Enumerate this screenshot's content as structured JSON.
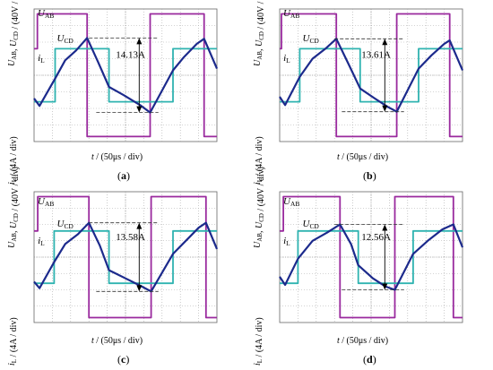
{
  "colors": {
    "u_ab": "#9a2a9e",
    "u_cd": "#2fb3b0",
    "i_l": "#1c2a8c",
    "grid": "#aaaaaa",
    "dash": "#333333"
  },
  "labels": {
    "u_ab": "U",
    "u_ab_sub": "AB",
    "u_cd": "U",
    "u_cd_sub": "CD",
    "i_l": "i",
    "i_l_sub": "L",
    "xlabel": "t / (50μs / div)",
    "ylabel_voltage": "U_AB, U_CD / (40V / div)",
    "ylabel_current": "i_L / (4A / div)"
  },
  "chart_data": [
    {
      "type": "line",
      "caption": "(a)",
      "annotation": "14.13A",
      "xlabel": "t / (50μs / div)",
      "ylabel": "U_AB, U_CD / (40V / div)   i_L / (4A / div)",
      "grid": true,
      "divisions": {
        "x": 10,
        "y": 8
      },
      "series": [
        {
          "name": "U_AB",
          "x": [
            0,
            0.18,
            0.18,
            2.9,
            2.9,
            6.35,
            6.35,
            9.3,
            9.3,
            10
          ],
          "y": [
            1.6,
            1.6,
            3.7,
            3.7,
            -3.7,
            -3.7,
            3.7,
            3.7,
            -3.7,
            -3.7
          ]
        },
        {
          "name": "U_CD",
          "x": [
            0,
            1.15,
            1.15,
            4.1,
            4.1,
            7.6,
            7.6,
            10
          ],
          "y": [
            -1.6,
            -1.6,
            1.6,
            1.6,
            -1.6,
            -1.6,
            1.6,
            1.6
          ]
        },
        {
          "name": "i_L",
          "x": [
            0,
            0.3,
            1.15,
            1.7,
            2.3,
            2.9,
            3.5,
            4.1,
            4.9,
            5.8,
            6.35,
            7.6,
            8.2,
            8.9,
            9.3,
            10
          ],
          "y": [
            -1.4,
            -1.85,
            -0.2,
            0.9,
            1.5,
            2.25,
            0.8,
            -0.7,
            -1.2,
            -1.8,
            -2.25,
            0.3,
            1.1,
            1.9,
            2.2,
            0.4
          ]
        }
      ]
    },
    {
      "type": "line",
      "caption": "(b)",
      "annotation": "13.61A",
      "xlabel": "t / (50μs / div)",
      "ylabel": "U_AB, U_CD / (40V / div)   i_L / (4A / div)",
      "grid": true,
      "divisions": {
        "x": 10,
        "y": 8
      },
      "series": [
        {
          "name": "U_AB",
          "x": [
            0,
            0.1,
            0.1,
            3.1,
            3.1,
            6.4,
            6.4,
            9.3,
            9.3,
            10
          ],
          "y": [
            1.6,
            1.6,
            3.7,
            3.7,
            -3.7,
            -3.7,
            3.7,
            3.7,
            -3.7,
            -3.7
          ]
        },
        {
          "name": "U_CD",
          "x": [
            0,
            1.1,
            1.1,
            4.4,
            4.4,
            7.6,
            7.6,
            10
          ],
          "y": [
            -1.6,
            -1.6,
            1.6,
            1.6,
            -1.6,
            -1.6,
            1.6,
            1.6
          ]
        },
        {
          "name": "i_L",
          "x": [
            0,
            0.3,
            1.1,
            1.8,
            2.5,
            3.1,
            3.8,
            4.4,
            5.2,
            5.9,
            6.4,
            7.6,
            8.3,
            9.0,
            9.3,
            10
          ],
          "y": [
            -1.3,
            -1.8,
            -0.1,
            1.0,
            1.6,
            2.2,
            0.6,
            -0.8,
            -1.4,
            -1.9,
            -2.2,
            0.4,
            1.2,
            1.9,
            2.1,
            0.3
          ]
        }
      ]
    },
    {
      "type": "line",
      "caption": "(c)",
      "annotation": "13.58A",
      "xlabel": "t / (50μs / div)",
      "ylabel": "U_AB, U_CD / (40V / div)   i_L / (4A / div)",
      "grid": true,
      "divisions": {
        "x": 10,
        "y": 8
      },
      "series": [
        {
          "name": "U_AB",
          "x": [
            0,
            0.2,
            0.2,
            3.0,
            3.0,
            6.4,
            6.4,
            9.4,
            9.4,
            10
          ],
          "y": [
            1.6,
            1.6,
            3.7,
            3.7,
            -3.7,
            -3.7,
            3.7,
            3.7,
            -3.7,
            -3.7
          ]
        },
        {
          "name": "U_CD",
          "x": [
            0,
            1.1,
            1.1,
            4.1,
            4.1,
            7.6,
            7.6,
            10
          ],
          "y": [
            -1.6,
            -1.6,
            1.6,
            1.6,
            -1.6,
            -1.6,
            1.6,
            1.6
          ]
        },
        {
          "name": "i_L",
          "x": [
            0,
            0.3,
            1.1,
            1.7,
            2.4,
            3.0,
            3.6,
            4.1,
            5.0,
            5.9,
            6.4,
            7.6,
            8.3,
            9.0,
            9.4,
            10
          ],
          "y": [
            -1.5,
            -1.9,
            -0.3,
            0.8,
            1.4,
            2.1,
            0.7,
            -0.8,
            -1.3,
            -1.8,
            -2.1,
            0.2,
            1.0,
            1.8,
            2.1,
            0.5
          ]
        }
      ]
    },
    {
      "type": "line",
      "caption": "(d)",
      "annotation": "12.56A",
      "xlabel": "t / (50μs / div)",
      "ylabel": "U_AB, U_CD / (40V / div)   i_L / (4A / div)",
      "grid": true,
      "divisions": {
        "x": 10,
        "y": 8
      },
      "series": [
        {
          "name": "U_AB",
          "x": [
            0,
            0.2,
            0.2,
            3.3,
            3.3,
            6.3,
            6.3,
            9.5,
            9.5,
            10
          ],
          "y": [
            1.6,
            1.6,
            3.7,
            3.7,
            -3.7,
            -3.7,
            3.7,
            3.7,
            -3.7,
            -3.7
          ]
        },
        {
          "name": "U_CD",
          "x": [
            0,
            1.0,
            1.0,
            4.3,
            4.3,
            7.3,
            7.3,
            10
          ],
          "y": [
            -1.6,
            -1.6,
            1.6,
            1.6,
            -1.6,
            -1.6,
            1.6,
            1.6
          ]
        },
        {
          "name": "i_L",
          "x": [
            0,
            0.3,
            1.0,
            1.8,
            2.6,
            3.3,
            3.9,
            4.3,
            5.1,
            5.8,
            6.3,
            7.3,
            8.1,
            8.9,
            9.5,
            10
          ],
          "y": [
            -1.2,
            -1.7,
            -0.1,
            1.0,
            1.5,
            2.0,
            0.8,
            -0.5,
            -1.3,
            -1.8,
            -2.0,
            0.2,
            1.0,
            1.7,
            2.0,
            0.6
          ]
        }
      ]
    }
  ]
}
